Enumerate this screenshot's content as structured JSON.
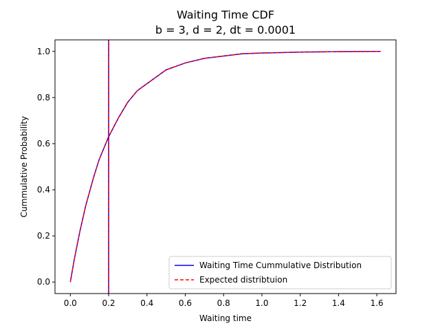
{
  "chart_data": {
    "type": "line",
    "title": "Waiting Time CDF",
    "subtitle": "b = 3, d = 2, dt = 0.0001",
    "xlabel": "Waiting time",
    "ylabel": "Cummulative Probability",
    "xlim": [
      -0.08,
      1.7
    ],
    "ylim": [
      -0.05,
      1.05
    ],
    "xticks": [
      0.0,
      0.2,
      0.4,
      0.6,
      0.8,
      1.0,
      1.2,
      1.4,
      1.6
    ],
    "xtick_labels": [
      "0.0",
      "0.2",
      "0.4",
      "0.6",
      "0.8",
      "1.0",
      "1.2",
      "1.4",
      "1.6"
    ],
    "yticks": [
      0.0,
      0.2,
      0.4,
      0.6,
      0.8,
      1.0
    ],
    "ytick_labels": [
      "0.0",
      "0.2",
      "0.4",
      "0.6",
      "0.8",
      "1.0"
    ],
    "grid": false,
    "legend_position": "lower-right",
    "series": [
      {
        "name": "Waiting Time Cummulative Distribution",
        "color": "#0000ff",
        "style": "solid",
        "x": [
          0.0,
          0.02,
          0.05,
          0.08,
          0.1,
          0.12,
          0.15,
          0.18,
          0.2,
          0.25,
          0.3,
          0.35,
          0.4,
          0.45,
          0.5,
          0.6,
          0.7,
          0.8,
          0.9,
          1.0,
          1.1,
          1.2,
          1.4,
          1.62
        ],
        "y": [
          0.0,
          0.095,
          0.22,
          0.33,
          0.39,
          0.45,
          0.53,
          0.59,
          0.63,
          0.71,
          0.78,
          0.83,
          0.86,
          0.89,
          0.92,
          0.95,
          0.97,
          0.98,
          0.99,
          0.993,
          0.995,
          0.997,
          0.999,
          1.0
        ]
      },
      {
        "name": "Expected distribtuion",
        "color": "#ff0000",
        "style": "dashed",
        "x": [
          0.0,
          0.02,
          0.05,
          0.08,
          0.1,
          0.12,
          0.15,
          0.18,
          0.2,
          0.25,
          0.3,
          0.35,
          0.4,
          0.45,
          0.5,
          0.6,
          0.7,
          0.8,
          0.9,
          1.0,
          1.1,
          1.2,
          1.4,
          1.62
        ],
        "y": [
          0.0,
          0.095,
          0.22,
          0.33,
          0.39,
          0.45,
          0.53,
          0.59,
          0.63,
          0.71,
          0.78,
          0.83,
          0.86,
          0.89,
          0.92,
          0.95,
          0.97,
          0.98,
          0.99,
          0.993,
          0.995,
          0.997,
          0.999,
          1.0
        ]
      }
    ],
    "vlines": [
      {
        "x": 0.2,
        "color": "#0000ff",
        "style": "solid"
      },
      {
        "x": 0.2,
        "color": "#ff0000",
        "style": "dashed"
      }
    ]
  }
}
